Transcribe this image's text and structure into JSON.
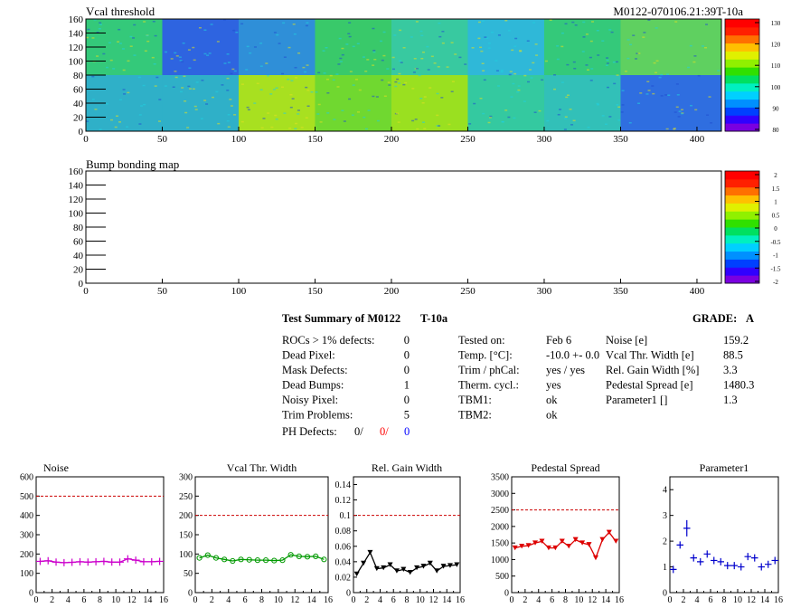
{
  "header": {
    "title": "Vcal threshold",
    "module_id": "M0122-070106.21:39T-10a"
  },
  "maps": [
    {
      "id": "vcal",
      "title": "Vcal threshold",
      "x_ticks": [
        "0",
        "50",
        "100",
        "150",
        "200",
        "250",
        "300",
        "350",
        "400"
      ],
      "y_ticks": [
        "0",
        "20",
        "40",
        "60",
        "80",
        "100",
        "120",
        "140",
        "160"
      ],
      "palette_ticks": [
        "80",
        "90",
        "100",
        "110",
        "120",
        "130"
      ]
    },
    {
      "id": "bump",
      "title": "Bump bonding map",
      "x_ticks": [
        "0",
        "50",
        "100",
        "150",
        "200",
        "250",
        "300",
        "350",
        "400"
      ],
      "y_ticks": [
        "0",
        "20",
        "40",
        "60",
        "80",
        "100",
        "120",
        "140",
        "160"
      ],
      "palette_ticks": [
        "-2",
        "-1.5",
        "-1",
        "-0.5",
        "0",
        "0.5",
        "1",
        "1.5",
        "2"
      ]
    }
  ],
  "summary": {
    "title": "Test Summary of M0122",
    "test_name": "T-10a",
    "grade_label": "GRADE:",
    "grade": "A",
    "defects": [
      {
        "label": "ROCs > 1% defects:",
        "value": "0"
      },
      {
        "label": "Dead Pixel:",
        "value": "0"
      },
      {
        "label": "Mask Defects:",
        "value": "0"
      },
      {
        "label": "Dead Bumps:",
        "value": "1"
      },
      {
        "label": "Noisy Pixel:",
        "value": "0"
      },
      {
        "label": "Trim Problems:",
        "value": "5"
      }
    ],
    "ph_defects": {
      "label": "PH Defects:",
      "v1": "0/",
      "v2": "0/",
      "v3": "0",
      "color_v2": "#ff0000",
      "color_v3": "#0000ff"
    },
    "conditions": [
      {
        "label": "Tested on:",
        "value": "Feb 6"
      },
      {
        "label": "Temp. [°C]:",
        "value": "-10.0 +- 0.0"
      },
      {
        "label": "Trim / phCal:",
        "value": "yes / yes"
      },
      {
        "label": "Therm. cycl.:",
        "value": "yes"
      },
      {
        "label": "TBM1:",
        "value": "ok"
      },
      {
        "label": "TBM2:",
        "value": "ok"
      }
    ],
    "results": [
      {
        "label": "Noise [e]",
        "value": "159.2"
      },
      {
        "label": "Vcal Thr. Width [e]",
        "value": "88.5"
      },
      {
        "label": "Rel. Gain Width [%]",
        "value": "3.3"
      },
      {
        "label": "Pedestal Spread [e]",
        "value": "1480.3"
      },
      {
        "label": "Parameter1 []",
        "value": "1.3"
      }
    ]
  },
  "chart_data": [
    {
      "type": "line",
      "title": "Noise",
      "color": "#cc00cc",
      "marker": "cross",
      "x": [
        0,
        1,
        2,
        3,
        4,
        5,
        6,
        7,
        8,
        9,
        10,
        11,
        12,
        13,
        14,
        15
      ],
      "values": [
        162,
        165,
        158,
        155,
        157,
        160,
        158,
        160,
        162,
        158,
        158,
        175,
        168,
        160,
        160,
        162
      ],
      "ylim": [
        0,
        600
      ],
      "yticks": [
        "0",
        "100",
        "200",
        "300",
        "400",
        "500",
        "600"
      ],
      "xticks": [
        "0",
        "2",
        "4",
        "6",
        "8",
        "10",
        "12",
        "14",
        "16"
      ],
      "limit_line": 500
    },
    {
      "type": "line",
      "title": "Vcal Thr. Width",
      "color": "#009900",
      "marker": "circle",
      "x": [
        0,
        1,
        2,
        3,
        4,
        5,
        6,
        7,
        8,
        9,
        10,
        11,
        12,
        13,
        14,
        15
      ],
      "values": [
        90,
        97,
        90,
        86,
        82,
        86,
        85,
        84,
        84,
        83,
        84,
        98,
        94,
        93,
        94,
        86
      ],
      "ylim": [
        0,
        300
      ],
      "yticks": [
        "0",
        "50",
        "100",
        "150",
        "200",
        "250",
        "300"
      ],
      "xticks": [
        "0",
        "2",
        "4",
        "6",
        "8",
        "10",
        "12",
        "14",
        "16"
      ],
      "limit_line": 200
    },
    {
      "type": "line",
      "title": "Rel. Gain Width",
      "color": "#000000",
      "marker": "triangle",
      "x": [
        0,
        1,
        2,
        3,
        4,
        5,
        6,
        7,
        8,
        9,
        10,
        11,
        12,
        13,
        14,
        15
      ],
      "values": [
        0.024,
        0.038,
        0.052,
        0.031,
        0.032,
        0.036,
        0.028,
        0.03,
        0.026,
        0.032,
        0.034,
        0.038,
        0.028,
        0.034,
        0.035,
        0.036
      ],
      "ylim": [
        0,
        0.15
      ],
      "yticks": [
        "0",
        "0.02",
        "0.04",
        "0.06",
        "0.08",
        "0.1",
        "0.12",
        "0.14"
      ],
      "ytick_values": [
        0,
        0.02,
        0.04,
        0.06,
        0.08,
        0.1,
        0.12,
        0.14
      ],
      "xticks": [
        "0",
        "2",
        "4",
        "6",
        "8",
        "10",
        "12",
        "14",
        "16"
      ],
      "limit_line": 0.1
    },
    {
      "type": "line",
      "title": "Pedestal Spread",
      "color": "#dd0000",
      "marker": "triangle",
      "x": [
        0,
        1,
        2,
        3,
        4,
        5,
        6,
        7,
        8,
        9,
        10,
        11,
        12,
        13,
        14,
        15
      ],
      "values": [
        1350,
        1400,
        1420,
        1500,
        1550,
        1350,
        1350,
        1550,
        1400,
        1600,
        1500,
        1450,
        1050,
        1600,
        1820,
        1550
      ],
      "ylim": [
        0,
        3500
      ],
      "yticks": [
        "0",
        "500",
        "1000",
        "1500",
        "2000",
        "2500",
        "3000",
        "3500"
      ],
      "xticks": [
        "0",
        "2",
        "4",
        "6",
        "8",
        "10",
        "12",
        "14",
        "16"
      ],
      "limit_line": 2500
    },
    {
      "type": "scatter",
      "title": "Parameter1",
      "color": "#0000cc",
      "marker": "cross",
      "x": [
        0,
        1,
        2,
        3,
        4,
        5,
        6,
        7,
        8,
        9,
        10,
        11,
        12,
        13,
        14,
        15
      ],
      "values": [
        0.9,
        1.85,
        2.5,
        1.35,
        1.2,
        1.5,
        1.25,
        1.2,
        1.05,
        1.05,
        1.0,
        1.4,
        1.35,
        1.0,
        1.1,
        1.25
      ],
      "ylim": [
        0,
        4.5
      ],
      "yticks": [
        "0",
        "1",
        "2",
        "3",
        "4"
      ],
      "xticks": [
        "0",
        "2",
        "4",
        "6",
        "8",
        "10",
        "12",
        "14",
        "16"
      ]
    }
  ]
}
